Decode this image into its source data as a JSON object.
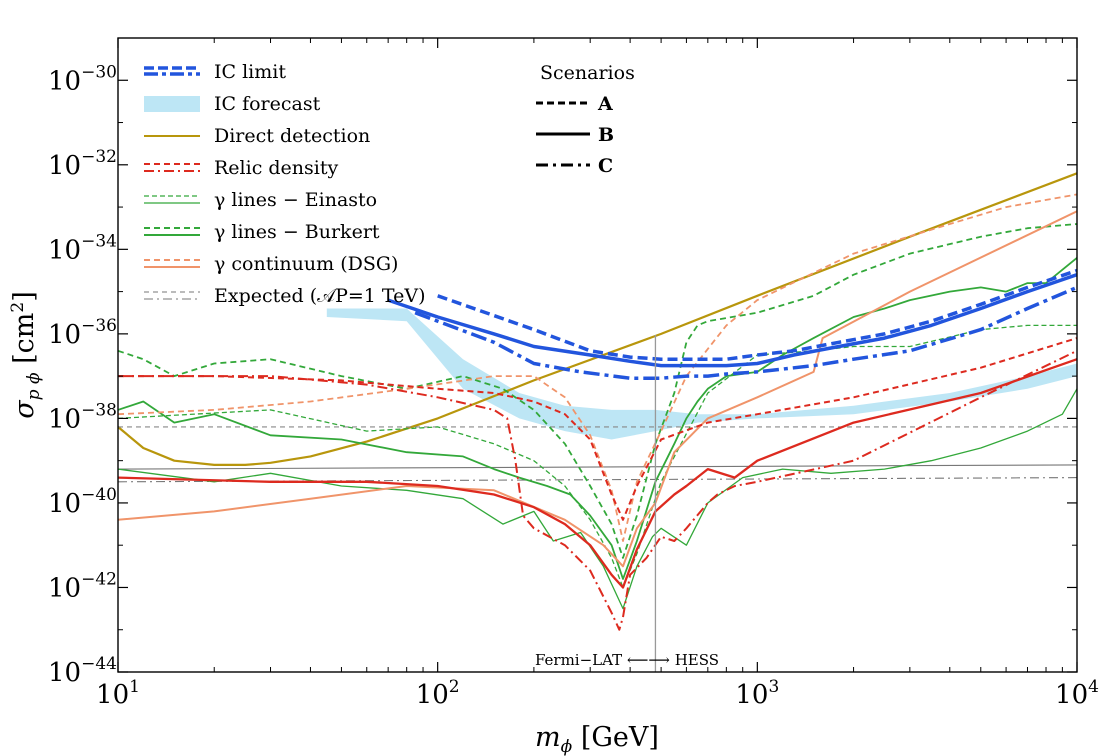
{
  "chart_data": {
    "type": "line",
    "title": "",
    "x_scale": "log",
    "y_scale": "log",
    "xlim": [
      10,
      10000
    ],
    "ylim": [
      1e-44,
      1e-29
    ],
    "xlabel": {
      "sym": "m",
      "sub": "ϕ",
      "unit": " [GeV]"
    },
    "ylabel": {
      "sym": "σ",
      "sub": "p ϕ",
      "unit": " [cm",
      "sup": "2",
      "close": "]"
    },
    "x_ticks": [
      {
        "value": 10,
        "base": "10",
        "exp": "1"
      },
      {
        "value": 100,
        "base": "10",
        "exp": "2"
      },
      {
        "value": 1000,
        "base": "10",
        "exp": "3"
      },
      {
        "value": 10000,
        "base": "10",
        "exp": "4"
      }
    ],
    "y_ticks": [
      {
        "value": -30,
        "base": "10",
        "exp": "−30"
      },
      {
        "value": -32,
        "base": "10",
        "exp": "−32"
      },
      {
        "value": -34,
        "base": "10",
        "exp": "−34"
      },
      {
        "value": -36,
        "base": "10",
        "exp": "−36"
      },
      {
        "value": -38,
        "base": "10",
        "exp": "−38"
      },
      {
        "value": -40,
        "base": "10",
        "exp": "−40"
      },
      {
        "value": -42,
        "base": "10",
        "exp": "−42"
      },
      {
        "value": -44,
        "base": "10",
        "exp": "−44"
      }
    ],
    "annotation": {
      "text": "Fermi−LAT ⟵⟶ HESS",
      "x": 480
    },
    "legend": {
      "entries": [
        {
          "label": "IC limit",
          "color": "#2255dd",
          "style": "ic"
        },
        {
          "label": "IC forecast",
          "color": "#bde6f5",
          "style": "band"
        },
        {
          "label": "Direct detection",
          "color": "#b8960c",
          "style": "solid"
        },
        {
          "label": "Relic density",
          "color": "#dd2a1f",
          "style": "dash-dashdot"
        },
        {
          "label": "γ lines − Einasto",
          "color": "#33a83a",
          "style": "thin-dash-solid"
        },
        {
          "label": "γ lines − Burkert",
          "color": "#33a83a",
          "style": "dash-solid"
        },
        {
          "label": "γ continuum (DSG)",
          "color": "#f0946a",
          "style": "dash-solid"
        },
        {
          "label": "Expected (𝒜P=1 TeV)",
          "color": "#777777",
          "style": "thin-dash-dashdot"
        }
      ],
      "scenarios_title": "Scenarios",
      "scenarios": [
        {
          "label": "A",
          "style": "dashed"
        },
        {
          "label": "B",
          "style": "solid"
        },
        {
          "label": "C",
          "style": "dashdot"
        }
      ]
    },
    "series": [
      {
        "name": "IC forecast",
        "color": "#bde6f5",
        "type": "band",
        "x": [
          45,
          80,
          120,
          180,
          250,
          350,
          480,
          650,
          1000,
          2000,
          4000,
          7000,
          10000
        ],
        "upper": [
          -35.4,
          -35.4,
          -36.6,
          -37.4,
          -37.7,
          -37.8,
          -37.8,
          -37.9,
          -37.9,
          -37.7,
          -37.4,
          -37.0,
          -36.7
        ],
        "lower": [
          -35.6,
          -35.7,
          -37.3,
          -38.0,
          -38.3,
          -38.5,
          -38.3,
          -38.1,
          -38.0,
          -37.9,
          -37.6,
          -37.3,
          -37.0
        ]
      },
      {
        "name": "Direct detection",
        "color": "#b8960c",
        "width": 2.2,
        "dash": "",
        "x": [
          10,
          12,
          15,
          20,
          25,
          30,
          40,
          60,
          100,
          200,
          500,
          1000,
          3000,
          10000
        ],
        "y": [
          -38.2,
          -38.7,
          -39.0,
          -39.1,
          -39.1,
          -39.05,
          -38.9,
          -38.55,
          -38.0,
          -37.1,
          -36.0,
          -35.1,
          -33.7,
          -32.2
        ]
      },
      {
        "name": "Expected (dashed)",
        "color": "#888888",
        "width": 1.1,
        "dash": "5,4",
        "x": [
          10,
          10000
        ],
        "y": [
          -38.2,
          -38.2
        ]
      },
      {
        "name": "Expected (solid)",
        "color": "#777777",
        "width": 1.1,
        "dash": "",
        "x": [
          10,
          10000
        ],
        "y": [
          -39.2,
          -39.1
        ]
      },
      {
        "name": "Expected (dashdot)",
        "color": "#777777",
        "width": 1.1,
        "dash": "9,4,2,4",
        "x": [
          10,
          10000
        ],
        "y": [
          -39.5,
          -39.4
        ]
      },
      {
        "name": "γ lines - Einasto (dashed)",
        "color": "#33a83a",
        "width": 1.3,
        "dash": "5,3",
        "x": [
          10,
          30,
          60,
          100,
          150,
          200,
          250,
          300,
          350,
          380,
          420,
          500,
          700,
          1000,
          1500,
          2000,
          3000,
          5000,
          7000,
          10000
        ],
        "y": [
          -38.0,
          -37.8,
          -38.3,
          -38.2,
          -38.6,
          -39.0,
          -39.6,
          -40.4,
          -41.3,
          -42.0,
          -41.2,
          -39.5,
          -37.4,
          -36.5,
          -36.4,
          -36.3,
          -36.3,
          -35.9,
          -35.8,
          -35.8
        ]
      },
      {
        "name": "γ lines - Einasto (solid)",
        "color": "#33a83a",
        "width": 1.3,
        "dash": "",
        "x": [
          10,
          20,
          30,
          50,
          80,
          120,
          160,
          200,
          230,
          280,
          330,
          380,
          420,
          470,
          500,
          600,
          700,
          900,
          1200,
          1700,
          2500,
          3500,
          5000,
          7000,
          9000,
          10000
        ],
        "y": [
          -39.2,
          -39.5,
          -39.3,
          -39.6,
          -39.7,
          -39.9,
          -40.5,
          -40.2,
          -40.9,
          -40.7,
          -41.5,
          -42.5,
          -41.5,
          -40.8,
          -40.6,
          -41.0,
          -40.0,
          -39.4,
          -39.2,
          -39.3,
          -39.2,
          -39.0,
          -38.7,
          -38.3,
          -37.9,
          -37.3
        ]
      },
      {
        "name": "γ lines - Burkert (dashed)",
        "color": "#33a83a",
        "width": 1.8,
        "dash": "6,4",
        "x": [
          10,
          12,
          15,
          20,
          30,
          50,
          80,
          120,
          160,
          200,
          250,
          300,
          350,
          380,
          420,
          480,
          550,
          600,
          650,
          700,
          1000,
          1500,
          2000,
          3000,
          5000,
          7000,
          10000
        ],
        "y": [
          -36.4,
          -36.6,
          -37.0,
          -36.7,
          -36.6,
          -37.0,
          -37.3,
          -37.0,
          -37.3,
          -37.8,
          -38.6,
          -39.6,
          -40.5,
          -41.3,
          -40.3,
          -38.6,
          -37.4,
          -36.2,
          -35.8,
          -35.7,
          -35.5,
          -35.1,
          -34.6,
          -34.1,
          -33.7,
          -33.5,
          -33.4
        ]
      },
      {
        "name": "γ lines - Burkert (solid)",
        "color": "#33a83a",
        "width": 1.8,
        "dash": "",
        "x": [
          10,
          12,
          15,
          20,
          30,
          50,
          80,
          120,
          150,
          180,
          220,
          260,
          300,
          350,
          380,
          420,
          480,
          550,
          600,
          650,
          700,
          800,
          1000,
          1200,
          1500,
          2000,
          2500,
          3000,
          4000,
          5000,
          6000,
          7000,
          8000,
          10000
        ],
        "y": [
          -37.8,
          -37.6,
          -38.1,
          -37.9,
          -38.4,
          -38.5,
          -38.8,
          -38.9,
          -39.2,
          -39.4,
          -39.6,
          -39.8,
          -40.3,
          -41.0,
          -41.8,
          -40.9,
          -39.5,
          -38.6,
          -38.0,
          -37.6,
          -37.3,
          -37.0,
          -36.9,
          -36.5,
          -36.1,
          -35.6,
          -35.4,
          -35.2,
          -35.0,
          -34.9,
          -35.0,
          -34.8,
          -34.8,
          -34.2
        ]
      },
      {
        "name": "γ continuum (dashed)",
        "color": "#f0946a",
        "width": 1.8,
        "dash": "6,4",
        "x": [
          10,
          20,
          40,
          80,
          150,
          200,
          250,
          300,
          350,
          380,
          420,
          500,
          600,
          800,
          1000,
          2000,
          4000,
          6000,
          10000
        ],
        "y": [
          -37.9,
          -37.8,
          -37.6,
          -37.3,
          -37.0,
          -37.0,
          -37.5,
          -38.4,
          -39.7,
          -40.9,
          -39.5,
          -38.3,
          -37.0,
          -35.8,
          -35.2,
          -34.1,
          -33.4,
          -33.0,
          -32.7
        ]
      },
      {
        "name": "γ continuum (solid)",
        "color": "#f0946a",
        "width": 2.0,
        "dash": "",
        "x": [
          10,
          20,
          40,
          80,
          150,
          250,
          330,
          380,
          420,
          480,
          550,
          700,
          1000,
          1500,
          1600,
          3000,
          10000
        ],
        "y": [
          -40.4,
          -40.2,
          -39.9,
          -39.6,
          -39.7,
          -40.4,
          -41.0,
          -41.5,
          -40.6,
          -40.0,
          -38.8,
          -38.0,
          -37.5,
          -36.9,
          -36.1,
          -35.0,
          -33.1
        ]
      },
      {
        "name": "Relic density A",
        "color": "#dd2a1f",
        "width": 2.0,
        "dash": "6,4",
        "x": [
          10,
          20,
          50,
          100,
          150,
          200,
          250,
          300,
          350,
          380,
          420,
          500,
          700,
          1000,
          2000,
          5000,
          10000
        ],
        "y": [
          -37.0,
          -37.0,
          -37.1,
          -37.3,
          -37.4,
          -37.6,
          -37.9,
          -38.5,
          -39.8,
          -40.4,
          -39.6,
          -38.5,
          -38.1,
          -37.9,
          -37.5,
          -36.8,
          -36.1
        ]
      },
      {
        "name": "Relic density B",
        "color": "#dd2a1f",
        "width": 2.3,
        "dash": "",
        "x": [
          10,
          30,
          60,
          100,
          150,
          200,
          250,
          300,
          350,
          380,
          420,
          480,
          550,
          600,
          700,
          850,
          1000,
          2000,
          5000,
          10000
        ],
        "y": [
          -39.4,
          -39.5,
          -39.5,
          -39.6,
          -39.8,
          -40.1,
          -40.5,
          -41.0,
          -41.7,
          -42.0,
          -41.1,
          -40.2,
          -39.8,
          -39.6,
          -39.2,
          -39.4,
          -39.0,
          -38.1,
          -37.4,
          -36.6
        ]
      },
      {
        "name": "Relic density C",
        "color": "#dd2a1f",
        "width": 2.0,
        "dash": "10,4,2,4",
        "x": [
          10,
          30,
          60,
          100,
          150,
          165,
          175,
          185,
          200,
          250,
          300,
          350,
          370,
          380,
          400,
          450,
          500,
          550,
          600,
          700,
          750,
          850,
          1000,
          2000,
          5000,
          10000
        ],
        "y": [
          -37.0,
          -37.0,
          -37.2,
          -37.5,
          -37.8,
          -38.0,
          -39.0,
          -40.3,
          -40.6,
          -41.0,
          -41.6,
          -42.6,
          -43.0,
          -42.7,
          -41.7,
          -41.3,
          -40.8,
          -40.9,
          -40.6,
          -40.0,
          -39.8,
          -39.6,
          -39.5,
          -39.0,
          -37.5,
          -36.4
        ]
      },
      {
        "name": "IC limit A",
        "color": "#2255dd",
        "width": 3.5,
        "dash": "10,5",
        "x": [
          100,
          200,
          300,
          400,
          500,
          600,
          700,
          800,
          1000,
          1300,
          1800,
          2500,
          3500,
          5000,
          7000,
          10000
        ],
        "y": [
          -35.1,
          -35.9,
          -36.4,
          -36.55,
          -36.6,
          -36.6,
          -36.6,
          -36.6,
          -36.5,
          -36.4,
          -36.2,
          -36.0,
          -35.7,
          -35.3,
          -34.9,
          -34.5
        ]
      },
      {
        "name": "IC limit B",
        "color": "#2255dd",
        "width": 3.5,
        "dash": "",
        "x": [
          70,
          100,
          150,
          200,
          300,
          400,
          500,
          600,
          700,
          800,
          1000,
          1300,
          1800,
          2500,
          3500,
          5000,
          7000,
          10000
        ],
        "y": [
          -35.2,
          -35.6,
          -36.0,
          -36.3,
          -36.5,
          -36.65,
          -36.75,
          -36.75,
          -36.75,
          -36.75,
          -36.7,
          -36.5,
          -36.3,
          -36.1,
          -35.8,
          -35.4,
          -35.0,
          -34.6
        ]
      },
      {
        "name": "IC limit C",
        "color": "#2255dd",
        "width": 3.5,
        "dash": "16,5,4,5",
        "x": [
          85,
          150,
          200,
          280,
          400,
          500,
          600,
          700,
          800,
          1000,
          1500,
          2000,
          3000,
          5000,
          7000,
          10000
        ],
        "y": [
          -35.5,
          -36.2,
          -36.7,
          -36.9,
          -37.05,
          -37.05,
          -37.0,
          -37.0,
          -36.95,
          -36.9,
          -36.75,
          -36.6,
          -36.4,
          -35.9,
          -35.4,
          -34.9
        ]
      }
    ]
  }
}
